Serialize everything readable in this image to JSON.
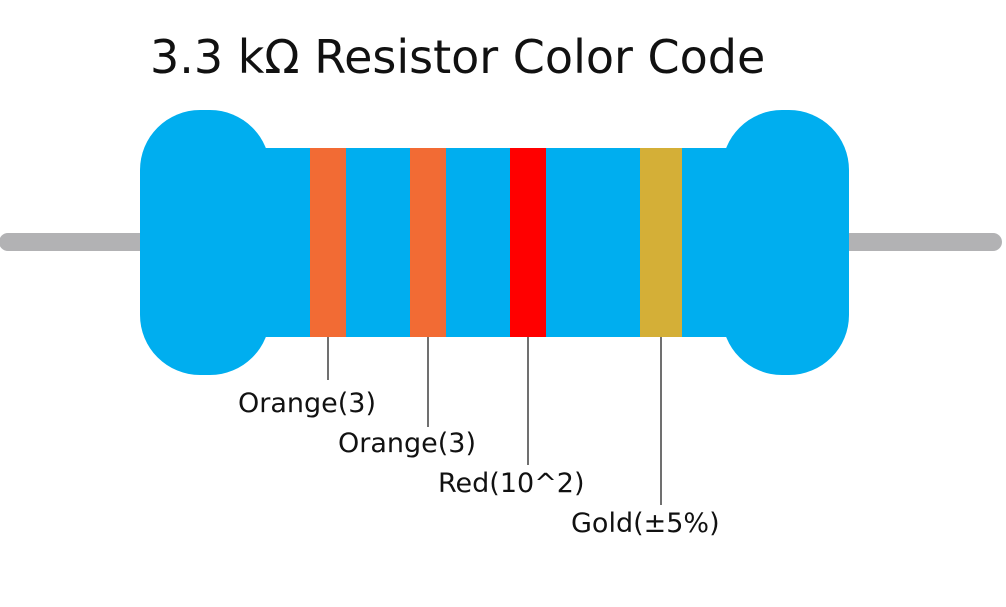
{
  "title": "3.3 kΩ Resistor Color Code",
  "colors": {
    "body": "#00aeef",
    "lead": "#b2b2b4",
    "orange": "#f26b34",
    "red": "#ff0000",
    "gold": "#d4af37",
    "leader_line": "#111111",
    "text": "#111111"
  },
  "bands": [
    {
      "name": "band-1",
      "color_name": "orange",
      "label": "Orange(3)"
    },
    {
      "name": "band-2",
      "color_name": "orange",
      "label": "Orange(3)"
    },
    {
      "name": "band-3",
      "color_name": "red",
      "label": "Red(10^2)"
    },
    {
      "name": "band-4",
      "color_name": "gold",
      "label": "Gold(±5%)"
    }
  ]
}
